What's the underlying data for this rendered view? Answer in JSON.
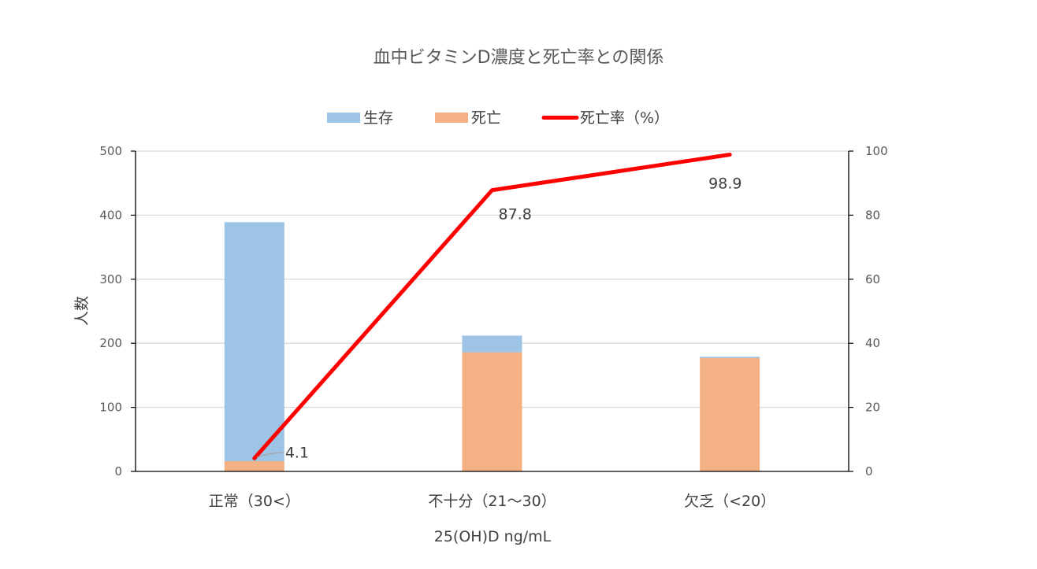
{
  "chart_data": {
    "type": "bar",
    "title": "血中ビタミンD濃度と死亡率との関係",
    "xlabel": "25(OH)D ng/mL",
    "ylabel": "人数",
    "categories": [
      "正常（30<）",
      "不十分（21～30）",
      "欠乏（<20）"
    ],
    "stacked": true,
    "ylim": [
      0,
      500
    ],
    "yticks": [
      0,
      100,
      200,
      300,
      400,
      500
    ],
    "y2lim": [
      0,
      100
    ],
    "y2ticks": [
      0,
      20,
      40,
      60,
      80,
      100
    ],
    "series": [
      {
        "name": "生存",
        "type": "bar",
        "axis": "left",
        "color": "#9DC3E6",
        "values": [
          373,
          26,
          2
        ]
      },
      {
        "name": "死亡",
        "type": "bar",
        "axis": "left",
        "color": "#F4B183",
        "values": [
          16,
          186,
          177
        ]
      },
      {
        "name": "死亡率（%）",
        "type": "line",
        "axis": "right",
        "color": "#FF0000",
        "values": [
          4.1,
          87.8,
          98.9
        ],
        "labels": [
          "4.1",
          "87.8",
          "98.9"
        ]
      }
    ],
    "legend_position": "top",
    "grid": true
  }
}
